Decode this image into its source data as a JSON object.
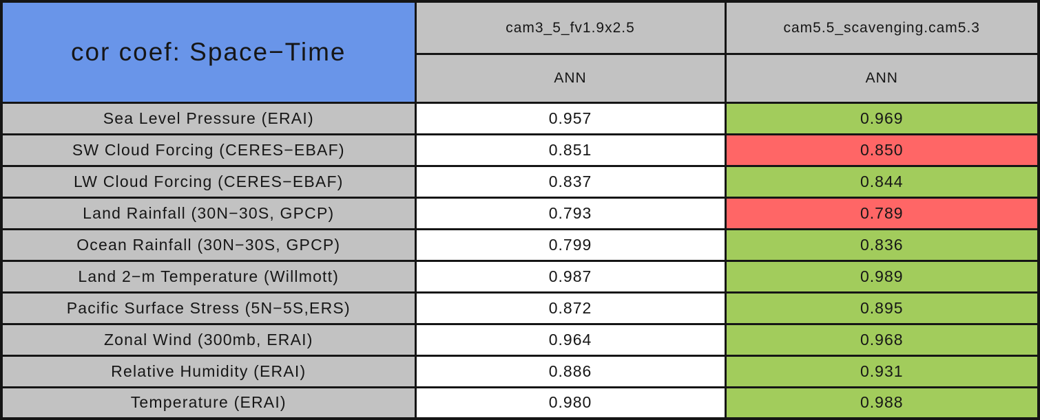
{
  "colors": {
    "ui": {
      "blue": "#6995E9",
      "gray": "#C2C2C2",
      "border": "#151515",
      "text": "#161616",
      "page_bg": "#FFFFFF"
    },
    "status": {
      "neutral": "#FFFFFF",
      "improved": "#A2CC5C",
      "degraded": "#FF6666"
    }
  },
  "chart_data": {
    "type": "table",
    "title": "cor coef: Space−Time",
    "columns": [
      "cam3_5_fv1.9x2.5",
      "cam5.5_scavenging.cam5.3"
    ],
    "subheaders": [
      "ANN",
      "ANN"
    ],
    "rows": [
      {
        "label": "Sea Level Pressure (ERAI)",
        "values": [
          "0.957",
          "0.969"
        ],
        "statuses": [
          "neutral",
          "improved"
        ]
      },
      {
        "label": "SW Cloud Forcing (CERES−EBAF)",
        "values": [
          "0.851",
          "0.850"
        ],
        "statuses": [
          "neutral",
          "degraded"
        ]
      },
      {
        "label": "LW Cloud Forcing (CERES−EBAF)",
        "values": [
          "0.837",
          "0.844"
        ],
        "statuses": [
          "neutral",
          "improved"
        ]
      },
      {
        "label": "Land Rainfall (30N−30S, GPCP)",
        "values": [
          "0.793",
          "0.789"
        ],
        "statuses": [
          "neutral",
          "degraded"
        ]
      },
      {
        "label": "Ocean Rainfall (30N−30S, GPCP)",
        "values": [
          "0.799",
          "0.836"
        ],
        "statuses": [
          "neutral",
          "improved"
        ]
      },
      {
        "label": "Land 2−m Temperature (Willmott)",
        "values": [
          "0.987",
          "0.989"
        ],
        "statuses": [
          "neutral",
          "improved"
        ]
      },
      {
        "label": "Pacific Surface Stress (5N−5S,ERS)",
        "values": [
          "0.872",
          "0.895"
        ],
        "statuses": [
          "neutral",
          "improved"
        ]
      },
      {
        "label": "Zonal Wind (300mb, ERAI)",
        "values": [
          "0.964",
          "0.968"
        ],
        "statuses": [
          "neutral",
          "improved"
        ]
      },
      {
        "label": "Relative Humidity (ERAI)",
        "values": [
          "0.886",
          "0.931"
        ],
        "statuses": [
          "neutral",
          "improved"
        ]
      },
      {
        "label": "Temperature (ERAI)",
        "values": [
          "0.980",
          "0.988"
        ],
        "statuses": [
          "neutral",
          "improved"
        ]
      }
    ]
  }
}
